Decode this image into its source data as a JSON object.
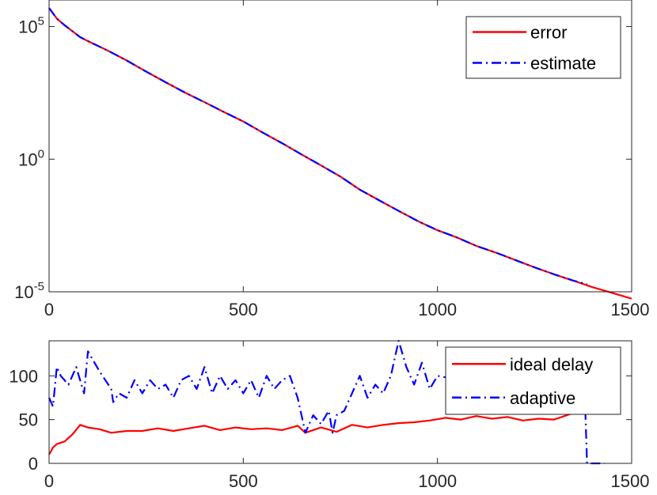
{
  "chart_data": [
    {
      "type": "line",
      "yscale": "log",
      "xlim": [
        0,
        1500
      ],
      "ylim": [
        1e-05,
        1000000.0
      ],
      "x_ticks": [
        0,
        500,
        1000,
        1500
      ],
      "x_tick_labels": [
        "0",
        "500",
        "1000",
        "1500"
      ],
      "y_ticks": [
        1e-05,
        1,
        100000.0
      ],
      "y_tick_labels": [
        {
          "base": "10",
          "exp": "-5"
        },
        {
          "base": "10",
          "exp": "0"
        },
        {
          "base": "10",
          "exp": "5"
        }
      ],
      "legend_position": "top-right",
      "grid": false,
      "series": [
        {
          "name": "error",
          "color": "#ff0000",
          "style": "solid",
          "x": [
            0,
            20,
            40,
            60,
            80,
            100,
            150,
            200,
            250,
            300,
            350,
            400,
            450,
            500,
            550,
            600,
            650,
            700,
            750,
            800,
            850,
            900,
            950,
            1000,
            1050,
            1100,
            1150,
            1200,
            1250,
            1300,
            1350,
            1400,
            1450,
            1500
          ],
          "y": [
            501187,
            199526,
            112202,
            66834,
            39811,
            28184,
            12589,
            5248,
            1995,
            794,
            324,
            141,
            60.3,
            26.3,
            10.0,
            3.98,
            1.51,
            0.58,
            0.22,
            0.071,
            0.028,
            0.0112,
            0.0046,
            0.00209,
            0.00112,
            0.000537,
            0.000302,
            0.000158,
            8.32e-05,
            4.57e-05,
            2.63e-05,
            1.48e-05,
            9.1e-06,
            5.5e-06
          ]
        },
        {
          "name": "estimate",
          "color": "#0000ff",
          "style": "dashdot",
          "x": [
            0,
            20,
            40,
            60,
            80,
            100,
            150,
            200,
            250,
            300,
            350,
            400,
            450,
            500,
            550,
            600,
            650,
            700,
            750,
            800,
            850,
            900,
            950,
            1000,
            1050,
            1100,
            1150,
            1200,
            1250,
            1300,
            1350,
            1385
          ],
          "y": [
            501187,
            199526,
            112202,
            66834,
            39811,
            28184,
            12589,
            5248,
            1995,
            794,
            324,
            141,
            60.3,
            26.3,
            10.0,
            3.98,
            1.51,
            0.58,
            0.22,
            0.071,
            0.028,
            0.0112,
            0.0046,
            0.00209,
            0.00112,
            0.000537,
            0.000302,
            0.000158,
            8.32e-05,
            4.57e-05,
            2.63e-05,
            1.95e-05
          ]
        }
      ]
    },
    {
      "type": "line",
      "xlim": [
        0,
        1500
      ],
      "ylim": [
        0,
        140
      ],
      "x_ticks": [
        0,
        500,
        1000,
        1500
      ],
      "x_tick_labels": [
        "0",
        "500",
        "1000",
        "1500"
      ],
      "y_ticks": [
        0,
        50,
        100
      ],
      "y_tick_labels": [
        "0",
        "50",
        "100"
      ],
      "legend_position": "top-right",
      "grid": false,
      "series": [
        {
          "name": "ideal delay",
          "color": "#ff0000",
          "style": "solid",
          "x": [
            0,
            10,
            20,
            40,
            60,
            80,
            100,
            130,
            160,
            200,
            240,
            280,
            320,
            360,
            400,
            440,
            480,
            520,
            560,
            600,
            640,
            660,
            700,
            740,
            780,
            820,
            860,
            900,
            940,
            980,
            1020,
            1060,
            1100,
            1140,
            1180,
            1220,
            1260,
            1300,
            1340,
            1360
          ],
          "y": [
            10,
            18,
            22,
            25,
            33,
            44,
            41,
            39,
            35,
            37,
            37,
            40,
            37,
            40,
            43,
            38,
            41,
            39,
            40,
            38,
            43,
            35,
            41,
            36,
            44,
            41,
            44,
            46,
            47,
            49,
            52,
            50,
            54,
            51,
            53,
            49,
            51,
            50,
            56,
            60
          ]
        },
        {
          "name": "adaptive",
          "color": "#0000ff",
          "style": "dashdot",
          "x": [
            0,
            10,
            20,
            30,
            50,
            70,
            90,
            100,
            130,
            160,
            165,
            180,
            200,
            220,
            240,
            260,
            280,
            300,
            320,
            340,
            360,
            380,
            400,
            420,
            440,
            460,
            480,
            500,
            520,
            540,
            560,
            580,
            600,
            620,
            640,
            650,
            660,
            680,
            700,
            720,
            730,
            740,
            760,
            780,
            800,
            820,
            840,
            860,
            880,
            900,
            920,
            940,
            960,
            980,
            1000,
            1380,
            1385,
            1430
          ],
          "y": [
            75,
            65,
            110,
            100,
            90,
            110,
            80,
            128,
            105,
            85,
            70,
            80,
            75,
            95,
            80,
            95,
            85,
            90,
            75,
            95,
            100,
            85,
            110,
            80,
            100,
            85,
            95,
            80,
            95,
            75,
            100,
            85,
            95,
            100,
            75,
            55,
            35,
            55,
            45,
            60,
            35,
            55,
            60,
            80,
            100,
            75,
            90,
            80,
            100,
            140,
            110,
            90,
            115,
            85,
            100,
            70,
            0,
            0
          ]
        }
      ]
    }
  ]
}
